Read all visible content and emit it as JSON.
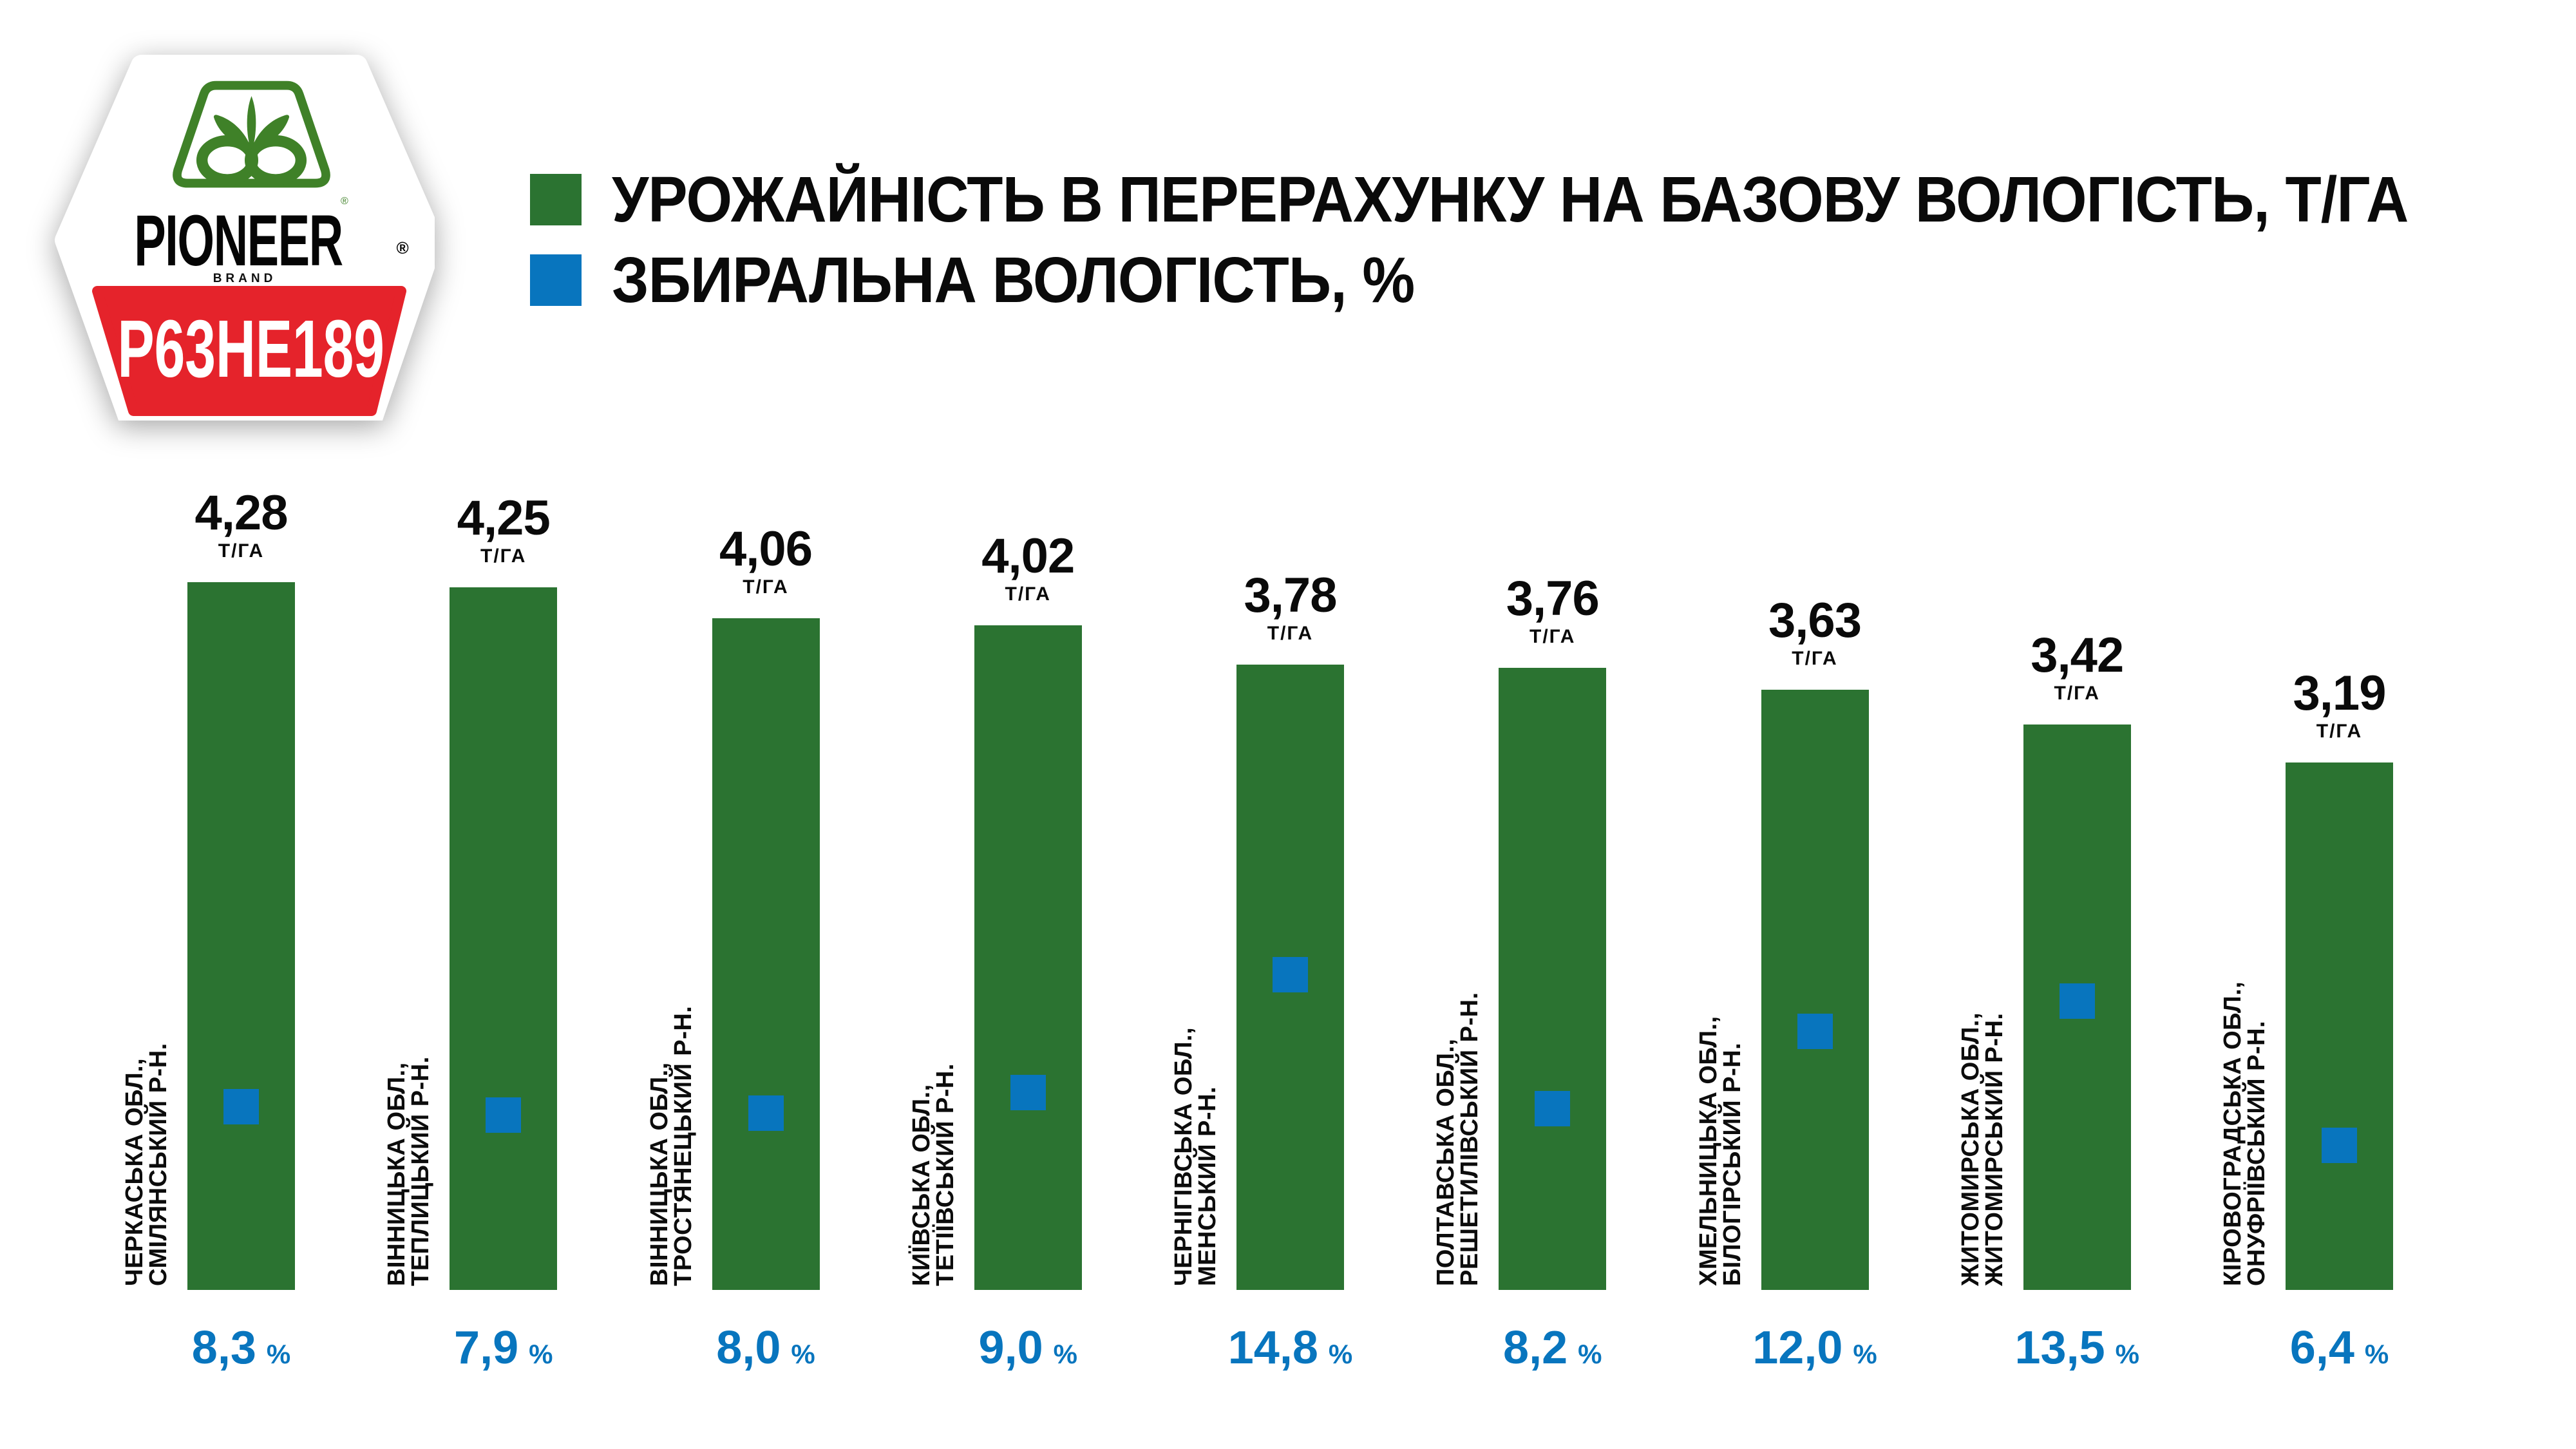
{
  "page": {
    "background": "#ffffff"
  },
  "badge": {
    "brand": "PIONEER",
    "reg_mark": "®",
    "brand_sub": "BRAND",
    "product": "P63HE189",
    "colors": {
      "red": "#E5232B",
      "logo_green": "#3F8128",
      "badge_fill": "#ffffff",
      "product_text": "#ffffff"
    }
  },
  "legend": {
    "items": [
      {
        "swatch_color": "#2B7331",
        "label": "УРОЖАЙНІСТЬ В ПЕРЕРАХУНКУ НА БАЗОВУ ВОЛОГІСТЬ, Т/ГА"
      },
      {
        "swatch_color": "#0875BE",
        "label": "ЗБИРАЛЬНА ВОЛОГІСТЬ, %"
      }
    ]
  },
  "chart_data": {
    "type": "bar",
    "title": "",
    "categories": [
      [
        "ЧЕРКАСЬКА ОБЛ.,",
        "СМІЛЯНСЬКИЙ Р-Н."
      ],
      [
        "ВІННИЦЬКА ОБЛ.,",
        "ТЕПЛИЦЬКИЙ Р-Н."
      ],
      [
        "ВІННИЦЬКА ОБЛ.,",
        "ТРОСТЯНЕЦЬКИЙ Р-Н."
      ],
      [
        "КИЇВСЬКА ОБЛ.,",
        "ТЕТІЇВСЬКИЙ Р-Н."
      ],
      [
        "ЧЕРНІГІВСЬКА ОБЛ.,",
        "МЕНСЬКИЙ Р-Н."
      ],
      [
        "ПОЛТАВСЬКА ОБЛ.,",
        "РЕШЕТИЛІВСЬКИЙ Р-Н."
      ],
      [
        "ХМЕЛЬНИЦЬКА ОБЛ.,",
        "БІЛОГІРСЬКИЙ Р-Н."
      ],
      [
        "ЖИТОМИРСЬКА ОБЛ.,",
        "ЖИТОМИРСЬКИЙ Р-Н."
      ],
      [
        "КІРОВОГРАДСЬКА ОБЛ.,",
        "ОНУФРІЇВСЬКИЙ Р-Н."
      ]
    ],
    "series": [
      {
        "name": "УРОЖАЙНІСТЬ В ПЕРЕРАХУНКУ НА БАЗОВУ ВОЛОГІСТЬ, Т/ГА",
        "unit": "Т/ГА",
        "color": "#2B7331",
        "values": [
          4.28,
          4.25,
          4.06,
          4.02,
          3.78,
          3.76,
          3.63,
          3.42,
          3.19
        ],
        "display": [
          "4,28",
          "4,25",
          "4,06",
          "4,02",
          "3,78",
          "3,76",
          "3,63",
          "3,42",
          "3,19"
        ]
      },
      {
        "name": "ЗБИРАЛЬНА ВОЛОГІСТЬ, %",
        "unit": "%",
        "color": "#0875BE",
        "values": [
          8.3,
          7.9,
          8.0,
          9.0,
          14.8,
          8.2,
          12.0,
          13.5,
          6.4
        ],
        "display": [
          "8,3",
          "7,9",
          "8,0",
          "9,0",
          "14,8",
          "8,2",
          "12,0",
          "13,5",
          "6,4"
        ]
      }
    ],
    "ylim": [
      0,
      4.28
    ],
    "grid": false,
    "legend_position": "top-left",
    "bar_color": "#2B7331",
    "marker_color": "#0875BE",
    "percent_text_color": "#0875BE"
  }
}
